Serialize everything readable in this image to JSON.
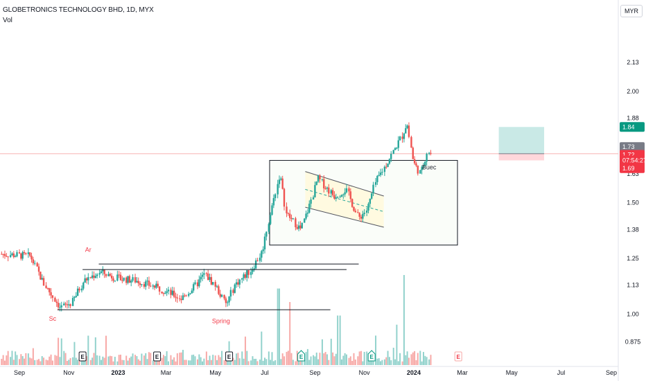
{
  "header": {
    "title": "GLOBETRONICS TECHNOLOGY BHD, 1D, MYX",
    "volume_label": "Vol",
    "currency": "MYR"
  },
  "colors": {
    "up": "#26a69a",
    "down": "#ef5350",
    "vol_up": "#92d2cc",
    "vol_down": "#f7a9a7",
    "annotation": "#f23645",
    "target_zone": "#b2dfdb",
    "stop_zone": "#ffcdd2",
    "price_line": "#f8b0b0",
    "channel_fill": "#fff9dc"
  },
  "chart_data": {
    "type": "candlestick",
    "y_axis": {
      "ticks": [
        {
          "value": 2.13,
          "label": "2.13"
        },
        {
          "value": 2.0,
          "label": "2.00"
        },
        {
          "value": 1.88,
          "label": "1.88"
        },
        {
          "value": 1.63,
          "label": "1.63"
        },
        {
          "value": 1.5,
          "label": "1.50"
        },
        {
          "value": 1.38,
          "label": "1.38"
        },
        {
          "value": 1.25,
          "label": "1.25"
        },
        {
          "value": 1.13,
          "label": "1.13"
        },
        {
          "value": 1.0,
          "label": "1.00"
        },
        {
          "value": 0.875,
          "label": "0.875"
        }
      ]
    },
    "x_axis": {
      "ticks": [
        {
          "date": "2022-09-01",
          "label": "Sep",
          "bold": false
        },
        {
          "date": "2022-11-01",
          "label": "Nov",
          "bold": false
        },
        {
          "date": "2023-01-01",
          "label": "2023",
          "bold": true
        },
        {
          "date": "2023-03-01",
          "label": "Mar",
          "bold": false
        },
        {
          "date": "2023-05-01",
          "label": "May",
          "bold": false
        },
        {
          "date": "2023-07-01",
          "label": "Jul",
          "bold": false
        },
        {
          "date": "2023-09-01",
          "label": "Sep",
          "bold": false
        },
        {
          "date": "2023-11-01",
          "label": "Nov",
          "bold": false
        },
        {
          "date": "2024-01-01",
          "label": "2024",
          "bold": true
        },
        {
          "date": "2024-03-01",
          "label": "Mar",
          "bold": false
        },
        {
          "date": "2024-05-01",
          "label": "May",
          "bold": false
        },
        {
          "date": "2024-07-01",
          "label": "Jul",
          "bold": false
        },
        {
          "date": "2024-09-01",
          "label": "Sep",
          "bold": false
        }
      ]
    },
    "price_path": [
      {
        "date": "2022-08-10",
        "close": 1.27
      },
      {
        "date": "2022-09-15",
        "close": 1.26
      },
      {
        "date": "2022-10-01",
        "close": 1.14
      },
      {
        "date": "2022-10-22",
        "close": 1.03
      },
      {
        "date": "2022-11-05",
        "close": 1.05
      },
      {
        "date": "2022-11-20",
        "close": 1.15
      },
      {
        "date": "2022-12-10",
        "close": 1.19
      },
      {
        "date": "2023-01-01",
        "close": 1.16
      },
      {
        "date": "2023-01-25",
        "close": 1.15
      },
      {
        "date": "2023-02-25",
        "close": 1.11
      },
      {
        "date": "2023-03-20",
        "close": 1.07
      },
      {
        "date": "2023-04-05",
        "close": 1.12
      },
      {
        "date": "2023-04-18",
        "close": 1.18
      },
      {
        "date": "2023-05-01",
        "close": 1.13
      },
      {
        "date": "2023-05-15",
        "close": 1.04
      },
      {
        "date": "2023-05-25",
        "close": 1.13
      },
      {
        "date": "2023-06-15",
        "close": 1.2
      },
      {
        "date": "2023-06-28",
        "close": 1.28
      },
      {
        "date": "2023-07-05",
        "close": 1.4
      },
      {
        "date": "2023-07-20",
        "close": 1.63
      },
      {
        "date": "2023-07-28",
        "close": 1.45
      },
      {
        "date": "2023-08-15",
        "close": 1.38
      },
      {
        "date": "2023-08-25",
        "close": 1.48
      },
      {
        "date": "2023-09-05",
        "close": 1.61
      },
      {
        "date": "2023-09-25",
        "close": 1.53
      },
      {
        "date": "2023-10-10",
        "close": 1.56
      },
      {
        "date": "2023-10-25",
        "close": 1.43
      },
      {
        "date": "2023-11-05",
        "close": 1.47
      },
      {
        "date": "2023-11-15",
        "close": 1.59
      },
      {
        "date": "2023-12-01",
        "close": 1.69
      },
      {
        "date": "2023-12-18",
        "close": 1.8
      },
      {
        "date": "2023-12-24",
        "close": 1.86
      },
      {
        "date": "2024-01-01",
        "close": 1.68
      },
      {
        "date": "2024-01-10",
        "close": 1.63
      },
      {
        "date": "2024-01-18",
        "close": 1.73
      },
      {
        "date": "2024-01-24",
        "close": 1.72
      }
    ],
    "volume_spikes": [
      {
        "date": "2023-07-18",
        "level": 0.85
      },
      {
        "date": "2023-08-02",
        "level": 0.7
      },
      {
        "date": "2023-10-01",
        "level": 0.55
      },
      {
        "date": "2023-12-20",
        "level": 1.0
      }
    ],
    "earnings_markers": [
      {
        "date": "2022-11-18",
        "label": "E",
        "style": "past"
      },
      {
        "date": "2023-02-18",
        "label": "E",
        "style": "past"
      },
      {
        "date": "2023-05-18",
        "label": "E",
        "style": "past"
      },
      {
        "date": "2023-08-15",
        "label": "E",
        "style": "up"
      },
      {
        "date": "2023-11-10",
        "label": "E",
        "style": "up"
      },
      {
        "date": "2024-02-25",
        "label": "E",
        "style": "future"
      }
    ],
    "annotations": [
      {
        "text": "Ar",
        "date": "2022-11-25",
        "price": 1.28,
        "color": "red"
      },
      {
        "text": "Sc",
        "date": "2022-10-12",
        "price": 0.97,
        "color": "red"
      },
      {
        "text": "Spring",
        "date": "2023-05-08",
        "price": 0.96,
        "color": "red"
      },
      {
        "text": "Buec",
        "date": "2024-01-20",
        "price": 1.65,
        "color": "dark"
      }
    ],
    "horizontal_lines": [
      {
        "from": "2022-10-18",
        "to": "2023-09-20",
        "price": 1.02
      },
      {
        "from": "2022-11-18",
        "to": "2023-10-10",
        "price": 1.2
      },
      {
        "from": "2022-12-08",
        "to": "2023-10-25",
        "price": 1.225
      }
    ],
    "range_box": {
      "from": "2023-07-07",
      "to": "2024-02-24",
      "top": 1.69,
      "bottom": 1.31
    },
    "channel": {
      "from": "2023-08-20",
      "to": "2023-11-25",
      "upper_start": 1.64,
      "upper_end": 1.53,
      "lower_start": 1.48,
      "lower_end": 1.39
    },
    "position": {
      "from": "2024-04-15",
      "to": "2024-06-10",
      "target": 1.84,
      "entry": 1.72,
      "stop": 1.69
    },
    "price_labels": [
      {
        "value": "1.84",
        "price": 1.84,
        "color": "#089981"
      },
      {
        "value": "1.73",
        "price": 1.75,
        "color": "#787b86"
      },
      {
        "value": "1.72",
        "price": 1.715,
        "color": "#f23645"
      },
      {
        "value": "07:54:27",
        "price": 1.69,
        "color": "#f23645"
      },
      {
        "value": "1.69",
        "price": 1.655,
        "color": "#f23645"
      }
    ]
  }
}
